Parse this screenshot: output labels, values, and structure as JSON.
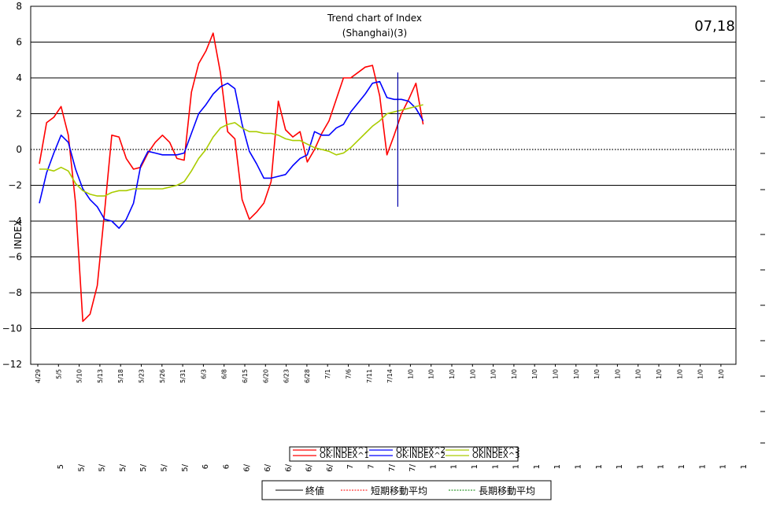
{
  "chart_data": {
    "type": "line",
    "title": "Trend chart of  Index",
    "subtitle": "(Shanghai)(3)",
    "code_label": "07,18",
    "ylabel": "INDEX",
    "ylim": [
      -12,
      8
    ],
    "yticks": [
      "8",
      "6",
      "4",
      "2",
      "0",
      "−2",
      "−4",
      "−6",
      "−8",
      "−10",
      "−12"
    ],
    "grid": true,
    "x_labels": [
      "4/29",
      "5/5",
      "5/10",
      "5/13",
      "5/18",
      "5/23",
      "5/26",
      "5/31",
      "6/3",
      "6/8",
      "6/15",
      "6/20",
      "6/23",
      "6/28",
      "7/1",
      "7/6",
      "7/11",
      "7/14",
      "1/0",
      "1/0",
      "1/0",
      "1/0",
      "1/0",
      "1/0",
      "1/0",
      "1/0",
      "1/0",
      "1/0",
      "1/0",
      "1/0",
      "1/0",
      "1/0",
      "1/0",
      "1/0"
    ],
    "x_labels_lower": [
      "5",
      "5/",
      "5/",
      "5/",
      "5/",
      "5/",
      "5/",
      "6",
      "6",
      "6/",
      "6/",
      "6/",
      "6/",
      "6/",
      "7",
      "7",
      "7/",
      "7/",
      "1",
      "1",
      "1",
      "1",
      "1",
      "1",
      "1",
      "1",
      "1",
      "1",
      "1",
      "1",
      "1",
      "1",
      "1",
      "1"
    ],
    "series": [
      {
        "name": "OK-INDEX^1",
        "color": "#ff0000",
        "values": [
          -0.8,
          1.5,
          1.8,
          2.4,
          0.8,
          -3.0,
          -9.6,
          -9.2,
          -7.6,
          -3.5,
          0.8,
          0.7,
          -0.5,
          -1.1,
          -1.0,
          -0.2,
          0.4,
          0.8,
          0.4,
          -0.5,
          -0.6,
          3.2,
          4.8,
          5.5,
          6.5,
          4.3,
          1.0,
          0.6,
          -2.8,
          -3.9,
          -3.5,
          -3.0,
          -1.8,
          2.7,
          1.1,
          0.7,
          1.0,
          -0.7,
          0.0,
          0.9,
          1.6,
          2.8,
          4.0,
          4.0,
          4.3,
          4.6,
          4.7,
          3.0,
          -0.3,
          0.8,
          2.0,
          2.8,
          3.7,
          1.4
        ]
      },
      {
        "name": "OK-INDEX^2",
        "color": "#0000ff",
        "values": [
          -3.0,
          -1.3,
          -0.2,
          0.8,
          0.4,
          -1.1,
          -2.2,
          -2.8,
          -3.2,
          -3.9,
          -4.0,
          -4.4,
          -3.9,
          -3.0,
          -0.9,
          -0.1,
          -0.2,
          -0.3,
          -0.3,
          -0.3,
          -0.2,
          0.9,
          2.0,
          2.5,
          3.1,
          3.5,
          3.7,
          3.4,
          1.4,
          -0.1,
          -0.8,
          -1.6,
          -1.6,
          -1.5,
          -1.4,
          -0.9,
          -0.5,
          -0.3,
          1.0,
          0.8,
          0.8,
          1.2,
          1.4,
          2.1,
          2.6,
          3.1,
          3.7,
          3.8,
          2.9,
          2.8,
          2.8,
          2.7,
          2.3,
          1.6
        ]
      },
      {
        "name": "OKINDEX^3",
        "color": "#aacc00",
        "values": [
          -1.1,
          -1.1,
          -1.2,
          -1.0,
          -1.2,
          -1.9,
          -2.3,
          -2.5,
          -2.6,
          -2.6,
          -2.4,
          -2.3,
          -2.3,
          -2.2,
          -2.2,
          -2.2,
          -2.2,
          -2.2,
          -2.1,
          -2.0,
          -1.8,
          -1.2,
          -0.5,
          0.0,
          0.7,
          1.2,
          1.4,
          1.5,
          1.2,
          1.0,
          1.0,
          0.9,
          0.9,
          0.8,
          0.6,
          0.5,
          0.5,
          0.3,
          0.1,
          0.0,
          -0.1,
          -0.3,
          -0.2,
          0.1,
          0.5,
          0.9,
          1.3,
          1.6,
          2.0,
          2.1,
          2.2,
          2.3,
          2.4,
          2.5
        ]
      }
    ],
    "marker": {
      "label": "7/11",
      "x_index": 49.5,
      "y_top": 4.3,
      "y_bottom": -3.2
    },
    "legend": {
      "rows": [
        [
          "OK-INDEX^1",
          "OK-INDEX^2",
          "OKINDEX^3"
        ],
        [
          "OK-INDEX^1",
          "OK-INDEX^2",
          "OKINDEX^3"
        ]
      ],
      "colors": [
        "#ff0000",
        "#0000ff",
        "#aacc00"
      ]
    },
    "legend2": [
      {
        "label": "終値",
        "color": "#000000",
        "dashed": false
      },
      {
        "label": "短期移動平均",
        "color": "#ff0000",
        "dashed": true
      },
      {
        "label": "長期移動平均",
        "color": "#008000",
        "dashed": true
      }
    ],
    "placement": {
      "legend": "bottom-center",
      "legend2": "bottom-center"
    }
  }
}
